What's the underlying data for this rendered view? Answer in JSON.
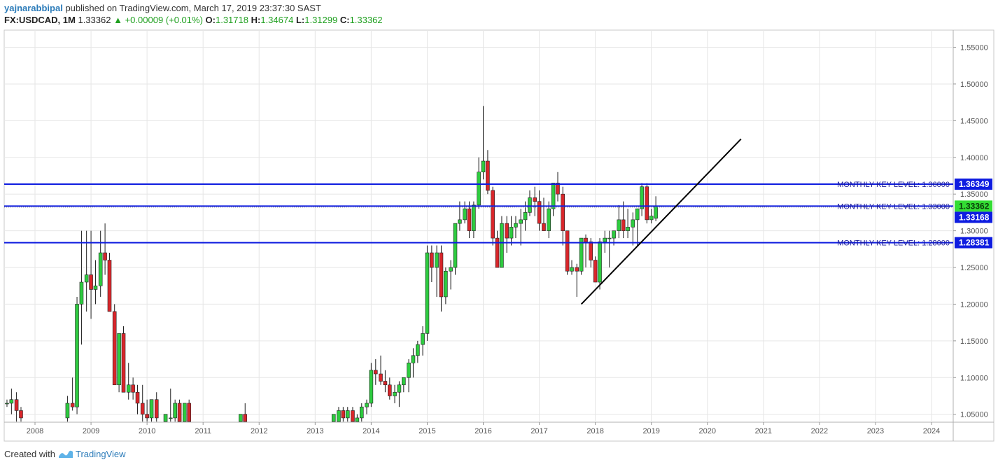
{
  "header": {
    "author": "yajnarabbipal",
    "published_text": "published on TradingView.com, March 17, 2019 23:37:30 SAST",
    "symbol": "FX:USDCAD, 1M",
    "last_price": "1.33362",
    "change": "+0.00009 (+0.01%)",
    "o_label": "O:",
    "o_value": "1.31718",
    "h_label": "H:",
    "h_value": "1.34674",
    "l_label": "L:",
    "l_value": "1.31299",
    "c_label": "C:",
    "c_value": "1.33362"
  },
  "footer": {
    "created_with": "Created with",
    "brand": "TradingView"
  },
  "colors": {
    "up": "#2ecc40",
    "down": "#d9262b",
    "level": "#0e1ce0",
    "trend": "#000000",
    "grid": "#e6e6e6"
  },
  "chart_data": {
    "type": "candlestick",
    "ylim": [
      1.04,
      1.57
    ],
    "xlim": [
      2007.5,
      2024.4
    ],
    "y_ticks": [
      "1.55000",
      "1.50000",
      "1.45000",
      "1.40000",
      "1.35000",
      "1.30000",
      "1.25000",
      "1.20000",
      "1.15000",
      "1.10000",
      "1.05000"
    ],
    "x_ticks": [
      "2008",
      "2009",
      "2010",
      "2011",
      "2012",
      "2013",
      "2014",
      "2015",
      "2016",
      "2017",
      "2018",
      "2019",
      "2020",
      "2021",
      "2022",
      "2023",
      "2024"
    ],
    "key_levels": [
      {
        "label": "MONTHLY KEY LEVEL: 1.36000",
        "value": 1.3635,
        "badge": "1.36349"
      },
      {
        "label": "MONTHLY KEY LEVEL: 1.33000",
        "value": 1.3336,
        "badge": "1.33362"
      },
      {
        "label": "MONTHLY KEY LEVEL: 1.28000",
        "value": 1.2838,
        "badge": "1.28381"
      }
    ],
    "price_badges": [
      {
        "value": 1.33362,
        "text": "1.33362",
        "kind": "current"
      },
      {
        "value": 1.33168,
        "text": "1.33168",
        "kind": "level"
      }
    ],
    "trendline": {
      "x1": 2017.75,
      "y1": 1.2,
      "x2": 2020.6,
      "y2": 1.425
    },
    "candles": [
      [
        2007.5,
        1.065,
        1.07,
        1.06,
        1.065
      ],
      [
        2007.58,
        1.065,
        1.085,
        1.05,
        1.07
      ],
      [
        2007.67,
        1.07,
        1.08,
        1.04,
        1.055
      ],
      [
        2007.75,
        1.055,
        1.06,
        1.04,
        1.045
      ],
      [
        2008.58,
        1.045,
        1.075,
        1.04,
        1.065
      ],
      [
        2008.67,
        1.065,
        1.1,
        1.055,
        1.06
      ],
      [
        2008.75,
        1.06,
        1.21,
        1.05,
        1.2
      ],
      [
        2008.83,
        1.2,
        1.3,
        1.145,
        1.23
      ],
      [
        2008.92,
        1.23,
        1.3,
        1.19,
        1.24
      ],
      [
        2009.0,
        1.24,
        1.3,
        1.18,
        1.22
      ],
      [
        2009.08,
        1.22,
        1.26,
        1.2,
        1.225
      ],
      [
        2009.17,
        1.225,
        1.3,
        1.21,
        1.27
      ],
      [
        2009.25,
        1.27,
        1.31,
        1.24,
        1.26
      ],
      [
        2009.33,
        1.26,
        1.27,
        1.19,
        1.19
      ],
      [
        2009.42,
        1.19,
        1.2,
        1.09,
        1.09
      ],
      [
        2009.5,
        1.09,
        1.16,
        1.08,
        1.16
      ],
      [
        2009.58,
        1.16,
        1.17,
        1.08,
        1.08
      ],
      [
        2009.67,
        1.08,
        1.12,
        1.07,
        1.09
      ],
      [
        2009.75,
        1.09,
        1.1,
        1.07,
        1.08
      ],
      [
        2009.83,
        1.08,
        1.09,
        1.05,
        1.065
      ],
      [
        2009.92,
        1.065,
        1.09,
        1.04,
        1.05
      ],
      [
        2010.0,
        1.05,
        1.07,
        1.04,
        1.045
      ],
      [
        2010.08,
        1.045,
        1.07,
        1.04,
        1.07
      ],
      [
        2010.17,
        1.07,
        1.08,
        1.04,
        1.045
      ],
      [
        2010.33,
        1.04,
        1.05,
        1.04,
        1.05
      ],
      [
        2010.42,
        1.045,
        1.085,
        1.04,
        1.045
      ],
      [
        2010.5,
        1.045,
        1.07,
        1.04,
        1.065
      ],
      [
        2010.58,
        1.065,
        1.07,
        1.04,
        1.04
      ],
      [
        2010.67,
        1.04,
        1.065,
        1.04,
        1.065
      ],
      [
        2010.75,
        1.065,
        1.07,
        1.04,
        1.04
      ],
      [
        2011.67,
        1.04,
        1.05,
        1.04,
        1.05
      ],
      [
        2011.75,
        1.05,
        1.065,
        1.04,
        1.04
      ],
      [
        2013.33,
        1.04,
        1.05,
        1.04,
        1.05
      ],
      [
        2013.42,
        1.04,
        1.06,
        1.04,
        1.055
      ],
      [
        2013.5,
        1.055,
        1.06,
        1.04,
        1.045
      ],
      [
        2013.58,
        1.045,
        1.06,
        1.04,
        1.055
      ],
      [
        2013.67,
        1.055,
        1.06,
        1.04,
        1.04
      ],
      [
        2013.75,
        1.04,
        1.05,
        1.04,
        1.045
      ],
      [
        2013.83,
        1.045,
        1.065,
        1.04,
        1.06
      ],
      [
        2013.92,
        1.06,
        1.07,
        1.05,
        1.065
      ],
      [
        2014.0,
        1.065,
        1.12,
        1.06,
        1.11
      ],
      [
        2014.08,
        1.11,
        1.125,
        1.09,
        1.105
      ],
      [
        2014.17,
        1.105,
        1.13,
        1.09,
        1.095
      ],
      [
        2014.25,
        1.095,
        1.11,
        1.08,
        1.09
      ],
      [
        2014.33,
        1.09,
        1.1,
        1.07,
        1.075
      ],
      [
        2014.42,
        1.075,
        1.09,
        1.065,
        1.08
      ],
      [
        2014.5,
        1.08,
        1.095,
        1.06,
        1.09
      ],
      [
        2014.58,
        1.09,
        1.1,
        1.08,
        1.1
      ],
      [
        2014.67,
        1.1,
        1.125,
        1.08,
        1.12
      ],
      [
        2014.75,
        1.12,
        1.14,
        1.1,
        1.13
      ],
      [
        2014.83,
        1.13,
        1.15,
        1.12,
        1.145
      ],
      [
        2014.92,
        1.145,
        1.17,
        1.13,
        1.16
      ],
      [
        2015.0,
        1.16,
        1.28,
        1.15,
        1.27
      ],
      [
        2015.08,
        1.27,
        1.28,
        1.23,
        1.25
      ],
      [
        2015.17,
        1.25,
        1.28,
        1.21,
        1.27
      ],
      [
        2015.25,
        1.27,
        1.28,
        1.19,
        1.21
      ],
      [
        2015.33,
        1.21,
        1.25,
        1.2,
        1.245
      ],
      [
        2015.42,
        1.245,
        1.26,
        1.22,
        1.25
      ],
      [
        2015.5,
        1.25,
        1.31,
        1.24,
        1.31
      ],
      [
        2015.58,
        1.31,
        1.34,
        1.3,
        1.315
      ],
      [
        2015.67,
        1.315,
        1.34,
        1.31,
        1.33
      ],
      [
        2015.75,
        1.33,
        1.34,
        1.29,
        1.3
      ],
      [
        2015.83,
        1.3,
        1.34,
        1.29,
        1.335
      ],
      [
        2015.92,
        1.335,
        1.4,
        1.33,
        1.38
      ],
      [
        2016.0,
        1.38,
        1.47,
        1.37,
        1.395
      ],
      [
        2016.08,
        1.395,
        1.41,
        1.35,
        1.355
      ],
      [
        2016.17,
        1.355,
        1.36,
        1.28,
        1.29
      ],
      [
        2016.25,
        1.29,
        1.3,
        1.25,
        1.25
      ],
      [
        2016.33,
        1.25,
        1.32,
        1.25,
        1.31
      ],
      [
        2016.42,
        1.31,
        1.32,
        1.27,
        1.29
      ],
      [
        2016.5,
        1.29,
        1.32,
        1.28,
        1.305
      ],
      [
        2016.58,
        1.305,
        1.32,
        1.29,
        1.31
      ],
      [
        2016.67,
        1.31,
        1.33,
        1.28,
        1.315
      ],
      [
        2016.75,
        1.315,
        1.34,
        1.3,
        1.325
      ],
      [
        2016.83,
        1.325,
        1.355,
        1.32,
        1.345
      ],
      [
        2016.92,
        1.345,
        1.36,
        1.32,
        1.34
      ],
      [
        2017.0,
        1.34,
        1.355,
        1.3,
        1.31
      ],
      [
        2017.08,
        1.31,
        1.345,
        1.3,
        1.3
      ],
      [
        2017.17,
        1.3,
        1.34,
        1.29,
        1.33
      ],
      [
        2017.25,
        1.33,
        1.36,
        1.32,
        1.365
      ],
      [
        2017.33,
        1.365,
        1.38,
        1.34,
        1.35
      ],
      [
        2017.42,
        1.35,
        1.36,
        1.28,
        1.3
      ],
      [
        2017.5,
        1.3,
        1.3,
        1.24,
        1.245
      ],
      [
        2017.58,
        1.245,
        1.26,
        1.24,
        1.25
      ],
      [
        2017.67,
        1.25,
        1.255,
        1.21,
        1.245
      ],
      [
        2017.75,
        1.245,
        1.29,
        1.24,
        1.29
      ],
      [
        2017.83,
        1.29,
        1.295,
        1.25,
        1.285
      ],
      [
        2017.92,
        1.285,
        1.29,
        1.25,
        1.26
      ],
      [
        2018.0,
        1.26,
        1.265,
        1.23,
        1.23
      ],
      [
        2018.08,
        1.23,
        1.29,
        1.22,
        1.285
      ],
      [
        2018.17,
        1.285,
        1.3,
        1.27,
        1.29
      ],
      [
        2018.25,
        1.29,
        1.3,
        1.25,
        1.29
      ],
      [
        2018.33,
        1.29,
        1.3,
        1.28,
        1.3
      ],
      [
        2018.42,
        1.3,
        1.335,
        1.29,
        1.315
      ],
      [
        2018.5,
        1.315,
        1.34,
        1.29,
        1.3
      ],
      [
        2018.58,
        1.3,
        1.33,
        1.29,
        1.305
      ],
      [
        2018.67,
        1.305,
        1.325,
        1.28,
        1.315
      ],
      [
        2018.75,
        1.315,
        1.33,
        1.28,
        1.33
      ],
      [
        2018.83,
        1.33,
        1.365,
        1.32,
        1.36
      ],
      [
        2018.92,
        1.36,
        1.365,
        1.31,
        1.315
      ],
      [
        2019.0,
        1.315,
        1.33,
        1.31,
        1.32
      ],
      [
        2019.08,
        1.317,
        1.347,
        1.313,
        1.334
      ]
    ]
  }
}
